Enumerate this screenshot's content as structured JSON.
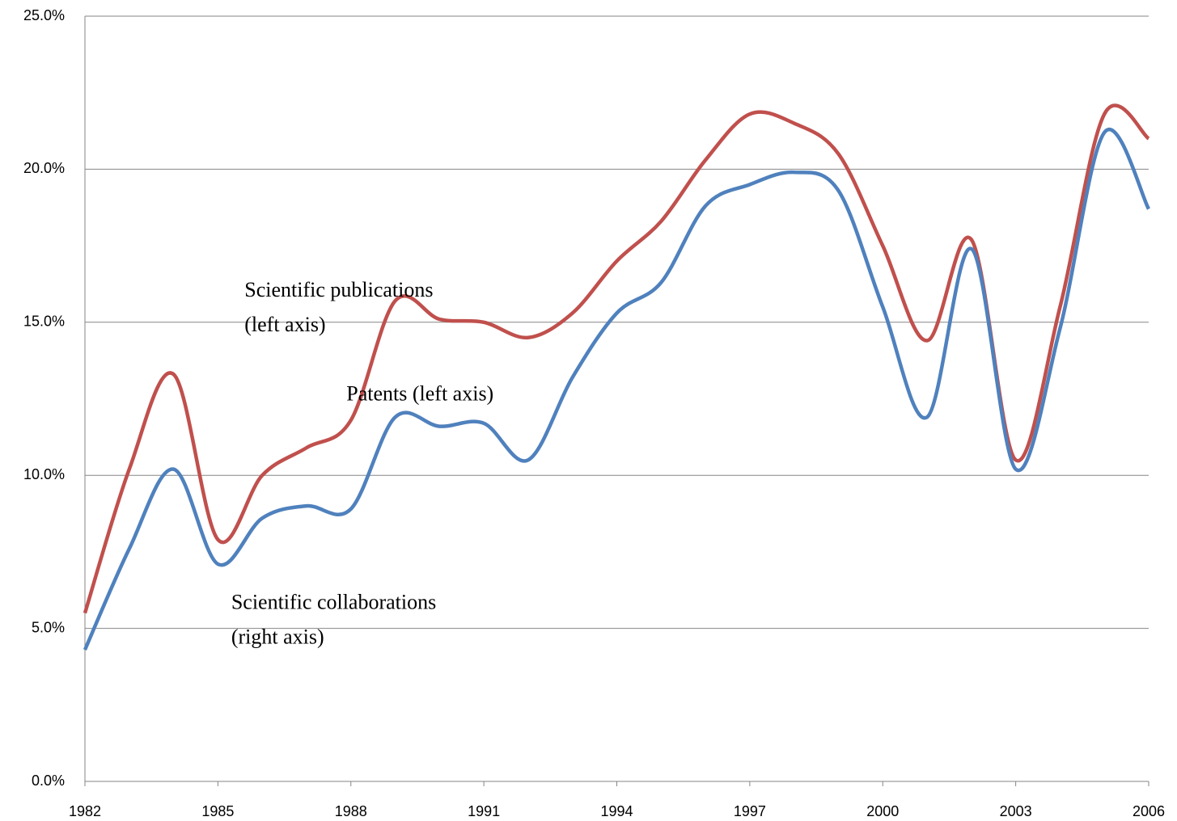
{
  "chart_data": {
    "type": "line",
    "x": [
      1982,
      1983,
      1984,
      1985,
      1986,
      1987,
      1988,
      1989,
      1990,
      1991,
      1992,
      1993,
      1994,
      1995,
      1996,
      1997,
      1998,
      1999,
      2000,
      2001,
      2002,
      2003,
      2004,
      2005,
      2006
    ],
    "series": [
      {
        "color": "#c0504d",
        "values": [
          5.5,
          10.2,
          13.3,
          7.9,
          10.0,
          10.9,
          11.8,
          15.7,
          15.1,
          15.0,
          14.5,
          15.3,
          17.0,
          18.3,
          20.3,
          21.8,
          21.5,
          20.5,
          17.5,
          14.4,
          17.7,
          10.5,
          15.5,
          21.8,
          21.0
        ]
      },
      {
        "color": "#4f81bd",
        "values": [
          4.3,
          7.6,
          10.2,
          7.1,
          8.6,
          9.0,
          8.9,
          11.9,
          11.6,
          11.7,
          10.5,
          13.2,
          15.3,
          16.3,
          18.8,
          19.5,
          19.9,
          19.3,
          15.5,
          11.9,
          17.4,
          10.2,
          14.8,
          21.2,
          18.7
        ]
      }
    ],
    "annotations": [
      {
        "lines": [
          "Scientific publications",
          "(left axis)"
        ],
        "x": 1985.6,
        "y": 16.0
      },
      {
        "lines": [
          "Patents (left axis)"
        ],
        "x": 1987.9,
        "y": 12.6
      },
      {
        "lines": [
          "Scientific collaborations",
          "(right axis)"
        ],
        "x": 1985.3,
        "y": 5.8
      }
    ],
    "xlim": [
      1982,
      2006
    ],
    "xticks": [
      1982,
      1985,
      1988,
      1991,
      1994,
      1997,
      2000,
      2003,
      2006
    ],
    "ylim": [
      0,
      25
    ],
    "yticks": [
      {
        "value": 0,
        "label": "0.0%"
      },
      {
        "value": 5,
        "label": "5.0%"
      },
      {
        "value": 10,
        "label": "10.0%"
      },
      {
        "value": 15,
        "label": "15.0%"
      },
      {
        "value": 20,
        "label": "20.0%"
      },
      {
        "value": 25,
        "label": "25.0%"
      }
    ],
    "grid": true
  }
}
